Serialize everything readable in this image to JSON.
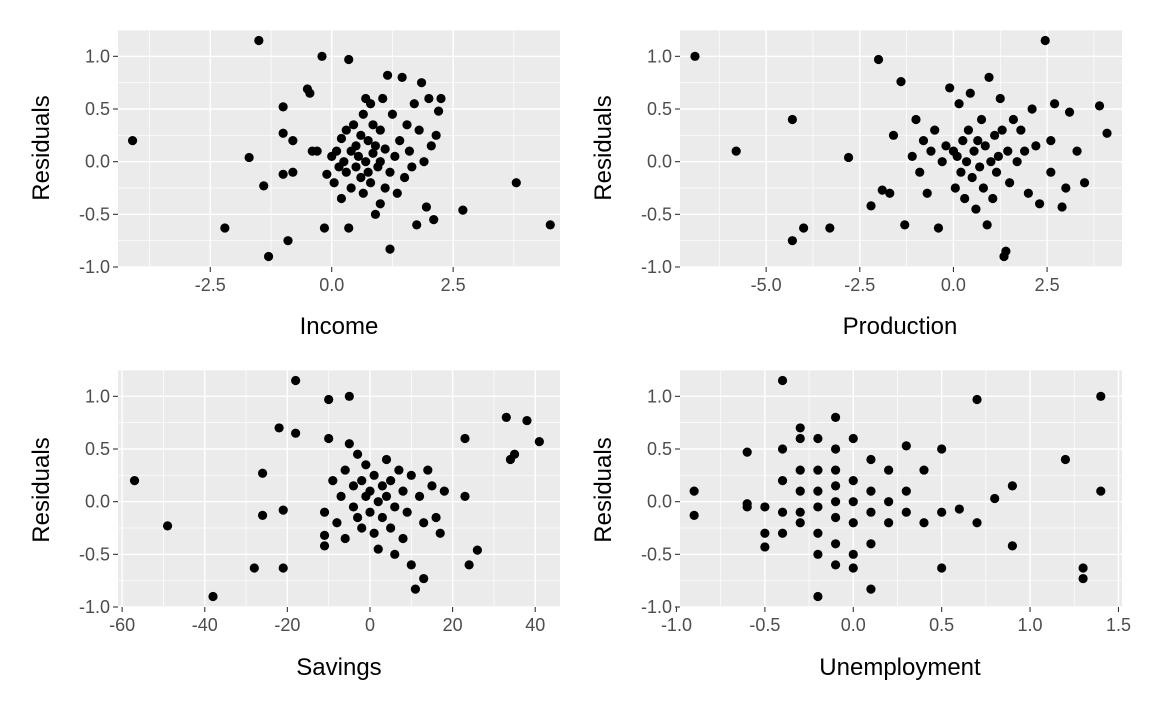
{
  "chart_data": [
    {
      "type": "scatter",
      "xlabel": "Income",
      "ylabel": "Residuals",
      "xlim": [
        -4.4,
        4.7
      ],
      "ylim": [
        -1.0,
        1.25
      ],
      "xticks": [
        -2.5,
        0.0,
        2.5
      ],
      "xtick_labels": [
        "-2.5",
        "0.0",
        "2.5"
      ],
      "yticks": [
        -1.0,
        -0.5,
        0.0,
        0.5,
        1.0
      ],
      "ytick_labels": [
        "-1.0",
        "-0.5",
        "0.0",
        "0.5",
        "1.0"
      ],
      "grid": true,
      "points": [
        [
          -4.1,
          0.2
        ],
        [
          -2.2,
          -0.63
        ],
        [
          -1.7,
          0.04
        ],
        [
          -1.5,
          1.15
        ],
        [
          -1.4,
          -0.23
        ],
        [
          -1.3,
          -0.9
        ],
        [
          -1.0,
          0.52
        ],
        [
          -1.0,
          0.27
        ],
        [
          -1.0,
          -0.12
        ],
        [
          -0.9,
          -0.75
        ],
        [
          -0.8,
          -0.1
        ],
        [
          -0.8,
          0.2
        ],
        [
          -0.5,
          0.69
        ],
        [
          -0.45,
          0.65
        ],
        [
          -0.4,
          0.1
        ],
        [
          -0.3,
          0.1
        ],
        [
          -0.2,
          1.0
        ],
        [
          -0.15,
          -0.63
        ],
        [
          -0.1,
          -0.12
        ],
        [
          0.0,
          0.05
        ],
        [
          0.05,
          -0.2
        ],
        [
          0.1,
          0.1
        ],
        [
          0.15,
          -0.05
        ],
        [
          0.2,
          0.22
        ],
        [
          0.2,
          -0.35
        ],
        [
          0.25,
          0.0
        ],
        [
          0.3,
          0.3
        ],
        [
          0.3,
          -0.1
        ],
        [
          0.35,
          0.97
        ],
        [
          0.35,
          -0.63
        ],
        [
          0.4,
          0.1
        ],
        [
          0.4,
          -0.25
        ],
        [
          0.45,
          0.35
        ],
        [
          0.5,
          -0.05
        ],
        [
          0.5,
          0.15
        ],
        [
          0.55,
          0.05
        ],
        [
          0.6,
          -0.15
        ],
        [
          0.6,
          0.25
        ],
        [
          0.65,
          0.45
        ],
        [
          0.65,
          -0.3
        ],
        [
          0.7,
          0.6
        ],
        [
          0.7,
          0.0
        ],
        [
          0.75,
          0.2
        ],
        [
          0.75,
          -0.1
        ],
        [
          0.8,
          0.55
        ],
        [
          0.8,
          -0.2
        ],
        [
          0.85,
          0.35
        ],
        [
          0.85,
          0.08
        ],
        [
          0.9,
          -0.5
        ],
        [
          0.9,
          0.15
        ],
        [
          0.95,
          -0.05
        ],
        [
          1.0,
          0.3
        ],
        [
          1.0,
          -0.4
        ],
        [
          1.0,
          0.0
        ],
        [
          1.05,
          0.6
        ],
        [
          1.1,
          -0.25
        ],
        [
          1.1,
          0.12
        ],
        [
          1.15,
          0.82
        ],
        [
          1.2,
          -0.83
        ],
        [
          1.2,
          -0.1
        ],
        [
          1.25,
          0.45
        ],
        [
          1.3,
          0.05
        ],
        [
          1.35,
          -0.3
        ],
        [
          1.4,
          0.2
        ],
        [
          1.45,
          0.8
        ],
        [
          1.5,
          -0.15
        ],
        [
          1.55,
          0.35
        ],
        [
          1.6,
          0.1
        ],
        [
          1.65,
          -0.05
        ],
        [
          1.7,
          0.55
        ],
        [
          1.75,
          -0.6
        ],
        [
          1.8,
          0.3
        ],
        [
          1.85,
          0.75
        ],
        [
          1.9,
          0.0
        ],
        [
          1.95,
          -0.43
        ],
        [
          2.0,
          0.6
        ],
        [
          2.05,
          0.15
        ],
        [
          2.1,
          -0.55
        ],
        [
          2.15,
          0.25
        ],
        [
          2.2,
          0.48
        ],
        [
          2.25,
          0.6
        ],
        [
          2.7,
          -0.46
        ],
        [
          3.8,
          -0.2
        ],
        [
          4.5,
          -0.6
        ]
      ]
    },
    {
      "type": "scatter",
      "xlabel": "Production",
      "ylabel": "Residuals",
      "xlim": [
        -7.3,
        4.5
      ],
      "ylim": [
        -1.0,
        1.25
      ],
      "xticks": [
        -5.0,
        -2.5,
        0.0,
        2.5
      ],
      "xtick_labels": [
        "-5.0",
        "-2.5",
        "0.0",
        "2.5"
      ],
      "yticks": [
        -1.0,
        -0.5,
        0.0,
        0.5,
        1.0
      ],
      "ytick_labels": [
        "-1.0",
        "-0.5",
        "0.0",
        "0.5",
        "1.0"
      ],
      "grid": true,
      "points": [
        [
          -6.9,
          1.0
        ],
        [
          -5.8,
          0.1
        ],
        [
          -4.3,
          -0.75
        ],
        [
          -4.0,
          -0.63
        ],
        [
          -4.3,
          0.4
        ],
        [
          -3.3,
          -0.63
        ],
        [
          -2.8,
          0.04
        ],
        [
          -2.2,
          -0.42
        ],
        [
          -2.0,
          0.97
        ],
        [
          -1.9,
          -0.27
        ],
        [
          -1.7,
          -0.3
        ],
        [
          -1.6,
          0.25
        ],
        [
          -1.4,
          0.76
        ],
        [
          -1.3,
          -0.6
        ],
        [
          -1.1,
          0.05
        ],
        [
          -1.0,
          0.4
        ],
        [
          -0.9,
          -0.1
        ],
        [
          -0.8,
          0.2
        ],
        [
          -0.7,
          -0.3
        ],
        [
          -0.6,
          0.1
        ],
        [
          -0.5,
          0.3
        ],
        [
          -0.4,
          -0.63
        ],
        [
          -0.3,
          0.0
        ],
        [
          -0.2,
          0.15
        ],
        [
          -0.1,
          0.7
        ],
        [
          0.0,
          0.1
        ],
        [
          0.05,
          -0.25
        ],
        [
          0.1,
          0.05
        ],
        [
          0.15,
          0.55
        ],
        [
          0.2,
          -0.1
        ],
        [
          0.25,
          0.2
        ],
        [
          0.3,
          -0.35
        ],
        [
          0.35,
          0.0
        ],
        [
          0.4,
          0.3
        ],
        [
          0.45,
          0.65
        ],
        [
          0.5,
          -0.15
        ],
        [
          0.55,
          0.1
        ],
        [
          0.6,
          -0.45
        ],
        [
          0.65,
          0.2
        ],
        [
          0.7,
          -0.05
        ],
        [
          0.75,
          0.4
        ],
        [
          0.8,
          -0.25
        ],
        [
          0.85,
          0.15
        ],
        [
          0.9,
          -0.6
        ],
        [
          0.95,
          0.8
        ],
        [
          1.0,
          0.0
        ],
        [
          1.05,
          -0.35
        ],
        [
          1.1,
          0.25
        ],
        [
          1.15,
          -0.1
        ],
        [
          1.2,
          0.05
        ],
        [
          1.3,
          0.3
        ],
        [
          1.35,
          -0.9
        ],
        [
          1.4,
          -0.85
        ],
        [
          1.45,
          0.1
        ],
        [
          1.5,
          -0.2
        ],
        [
          1.6,
          0.4
        ],
        [
          1.7,
          0.0
        ],
        [
          1.8,
          0.3
        ],
        [
          1.9,
          0.1
        ],
        [
          2.0,
          -0.3
        ],
        [
          2.1,
          0.5
        ],
        [
          2.2,
          0.15
        ],
        [
          2.3,
          -0.4
        ],
        [
          2.45,
          1.15
        ],
        [
          2.6,
          0.2
        ],
        [
          2.7,
          0.55
        ],
        [
          2.9,
          -0.43
        ],
        [
          3.0,
          -0.25
        ],
        [
          3.1,
          0.47
        ],
        [
          3.3,
          0.1
        ],
        [
          3.5,
          -0.2
        ],
        [
          3.9,
          0.53
        ],
        [
          4.1,
          0.27
        ],
        [
          2.6,
          -0.1
        ],
        [
          1.25,
          0.6
        ]
      ]
    },
    {
      "type": "scatter",
      "xlabel": "Savings",
      "ylabel": "Residuals",
      "xlim": [
        -61,
        46
      ],
      "ylim": [
        -1.0,
        1.25
      ],
      "xticks": [
        -60,
        -40,
        -20,
        0,
        20,
        40
      ],
      "xtick_labels": [
        "-60",
        "-40",
        "-20",
        "0",
        "20",
        "40"
      ],
      "yticks": [
        -1.0,
        -0.5,
        0.0,
        0.5,
        1.0
      ],
      "ytick_labels": [
        "-1.0",
        "-0.5",
        "0.0",
        "0.5",
        "1.0"
      ],
      "grid": true,
      "points": [
        [
          -57,
          0.2
        ],
        [
          -49,
          -0.23
        ],
        [
          -38,
          -0.9
        ],
        [
          -28,
          -0.63
        ],
        [
          -26,
          -0.13
        ],
        [
          -26,
          0.27
        ],
        [
          -22,
          0.7
        ],
        [
          -21,
          -0.63
        ],
        [
          -21,
          -0.08
        ],
        [
          -18,
          1.15
        ],
        [
          -18,
          0.65
        ],
        [
          -11,
          -0.1
        ],
        [
          -11,
          -0.32
        ],
        [
          -11,
          -0.42
        ],
        [
          -10,
          0.97
        ],
        [
          -10,
          0.6
        ],
        [
          -9,
          0.2
        ],
        [
          -8,
          -0.2
        ],
        [
          -7,
          0.05
        ],
        [
          -6,
          0.3
        ],
        [
          -6,
          -0.35
        ],
        [
          -5,
          0.55
        ],
        [
          -5,
          1.0
        ],
        [
          -4,
          -0.05
        ],
        [
          -4,
          0.15
        ],
        [
          -3,
          0.45
        ],
        [
          -3,
          -0.15
        ],
        [
          -2,
          0.2
        ],
        [
          -2,
          -0.25
        ],
        [
          -1,
          0.05
        ],
        [
          -1,
          0.35
        ],
        [
          0,
          -0.1
        ],
        [
          0,
          0.1
        ],
        [
          1,
          -0.3
        ],
        [
          1,
          0.25
        ],
        [
          2,
          0.0
        ],
        [
          2,
          -0.45
        ],
        [
          3,
          0.15
        ],
        [
          3,
          -0.15
        ],
        [
          4,
          0.05
        ],
        [
          4,
          0.4
        ],
        [
          5,
          -0.25
        ],
        [
          5,
          0.2
        ],
        [
          6,
          -0.05
        ],
        [
          6,
          -0.5
        ],
        [
          7,
          0.3
        ],
        [
          8,
          0.1
        ],
        [
          8,
          -0.35
        ],
        [
          9,
          -0.1
        ],
        [
          10,
          0.25
        ],
        [
          10,
          -0.6
        ],
        [
          11,
          -0.83
        ],
        [
          12,
          0.05
        ],
        [
          13,
          -0.2
        ],
        [
          13,
          -0.73
        ],
        [
          14,
          0.3
        ],
        [
          15,
          0.15
        ],
        [
          16,
          -0.15
        ],
        [
          17,
          -0.3
        ],
        [
          18,
          0.1
        ],
        [
          23,
          0.05
        ],
        [
          23,
          0.6
        ],
        [
          24,
          -0.6
        ],
        [
          26,
          -0.46
        ],
        [
          33,
          0.8
        ],
        [
          34,
          0.4
        ],
        [
          35,
          0.45
        ],
        [
          38,
          0.77
        ],
        [
          41,
          0.57
        ]
      ]
    },
    {
      "type": "scatter",
      "xlabel": "Unemployment",
      "ylabel": "Residuals",
      "xlim": [
        -0.98,
        1.52
      ],
      "ylim": [
        -1.0,
        1.25
      ],
      "xticks": [
        -1.0,
        -0.5,
        0.0,
        0.5,
        1.0,
        1.5
      ],
      "xtick_labels": [
        "-1.0",
        "-0.5",
        "0.0",
        "0.5",
        "1.0",
        "1.5"
      ],
      "yticks": [
        -1.0,
        -0.5,
        0.0,
        0.5,
        1.0
      ],
      "ytick_labels": [
        "-1.0",
        "-0.5",
        "0.0",
        "0.5",
        "1.0"
      ],
      "grid": true,
      "points": [
        [
          -0.9,
          0.1
        ],
        [
          -0.9,
          -0.13
        ],
        [
          -0.6,
          0.47
        ],
        [
          -0.6,
          -0.05
        ],
        [
          -0.6,
          -0.02
        ],
        [
          -0.5,
          -0.43
        ],
        [
          -0.5,
          -0.3
        ],
        [
          -0.5,
          -0.05
        ],
        [
          -0.4,
          1.15
        ],
        [
          -0.4,
          0.5
        ],
        [
          -0.4,
          0.2
        ],
        [
          -0.4,
          -0.1
        ],
        [
          -0.4,
          -0.3
        ],
        [
          -0.3,
          0.7
        ],
        [
          -0.3,
          0.6
        ],
        [
          -0.3,
          0.3
        ],
        [
          -0.3,
          0.1
        ],
        [
          -0.3,
          -0.1
        ],
        [
          -0.3,
          -0.2
        ],
        [
          -0.2,
          0.6
        ],
        [
          -0.2,
          0.3
        ],
        [
          -0.2,
          0.1
        ],
        [
          -0.2,
          -0.05
        ],
        [
          -0.2,
          -0.3
        ],
        [
          -0.2,
          -0.5
        ],
        [
          -0.2,
          -0.9
        ],
        [
          -0.1,
          0.8
        ],
        [
          -0.1,
          0.5
        ],
        [
          -0.1,
          0.3
        ],
        [
          -0.1,
          0.15
        ],
        [
          -0.1,
          0.0
        ],
        [
          -0.1,
          -0.15
        ],
        [
          -0.1,
          -0.4
        ],
        [
          -0.1,
          -0.6
        ],
        [
          0.0,
          0.6
        ],
        [
          0.0,
          0.2
        ],
        [
          0.0,
          0.0
        ],
        [
          0.0,
          -0.2
        ],
        [
          0.0,
          -0.5
        ],
        [
          0.0,
          -0.63
        ],
        [
          0.1,
          0.4
        ],
        [
          0.1,
          0.1
        ],
        [
          0.1,
          -0.1
        ],
        [
          0.1,
          -0.4
        ],
        [
          0.1,
          -0.83
        ],
        [
          0.2,
          0.3
        ],
        [
          0.2,
          0.0
        ],
        [
          0.2,
          -0.2
        ],
        [
          0.3,
          0.53
        ],
        [
          0.3,
          0.1
        ],
        [
          0.3,
          -0.1
        ],
        [
          0.4,
          0.3
        ],
        [
          0.4,
          -0.2
        ],
        [
          0.5,
          0.5
        ],
        [
          0.5,
          -0.1
        ],
        [
          0.5,
          -0.63
        ],
        [
          0.6,
          -0.07
        ],
        [
          0.7,
          0.97
        ],
        [
          0.7,
          -0.2
        ],
        [
          0.8,
          0.03
        ],
        [
          0.9,
          0.15
        ],
        [
          0.9,
          -0.42
        ],
        [
          1.2,
          0.4
        ],
        [
          1.3,
          -0.63
        ],
        [
          1.3,
          -0.73
        ],
        [
          1.4,
          1.0
        ],
        [
          1.4,
          0.1
        ]
      ]
    }
  ]
}
